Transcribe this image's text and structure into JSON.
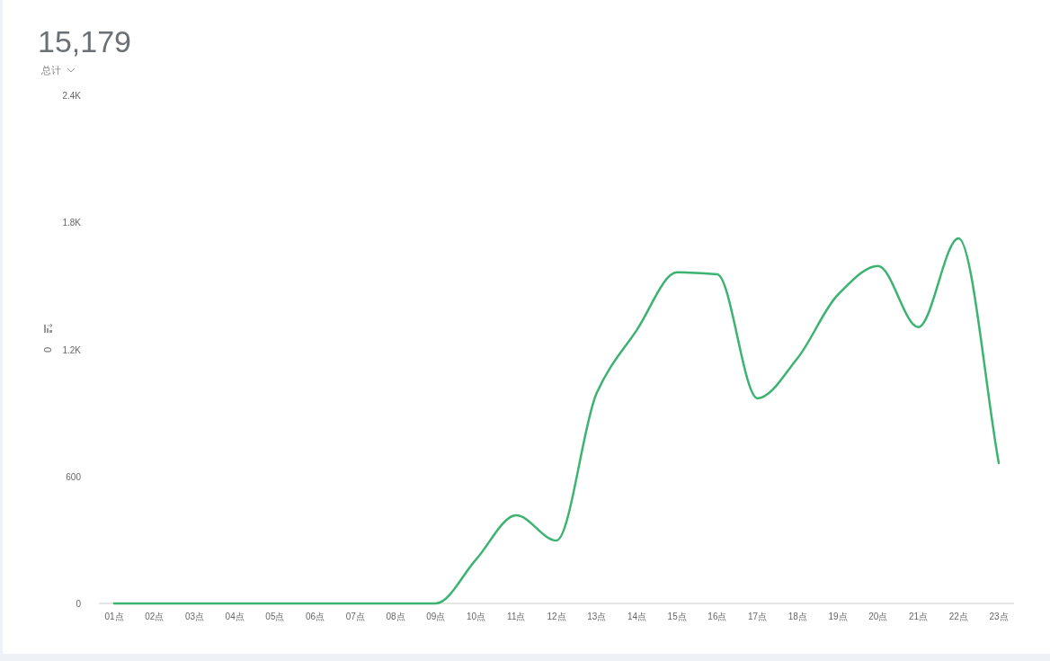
{
  "chart_data": {
    "type": "line",
    "title": "15,179",
    "subtitle": "总计",
    "ylabel": "0",
    "categories": [
      "01点",
      "02点",
      "03点",
      "04点",
      "05点",
      "06点",
      "07点",
      "08点",
      "09点",
      "10点",
      "11点",
      "12点",
      "13点",
      "14点",
      "15点",
      "16点",
      "17点",
      "18点",
      "19点",
      "20点",
      "21点",
      "22点",
      "23点"
    ],
    "series": [
      {
        "color": "#3cb371",
        "values": [
          0,
          0,
          0,
          0,
          0,
          0,
          0,
          0,
          0,
          208,
          416,
          297,
          994,
          1292,
          1564,
          1555,
          969,
          1160,
          1458,
          1594,
          1305,
          1725,
          663
        ]
      }
    ],
    "ylim": [
      0,
      2400
    ],
    "yticks": [
      0,
      600,
      {
        "value": 1200,
        "label": "1.2K"
      },
      {
        "value": 1800,
        "label": "1.8K"
      },
      {
        "value": 2400,
        "label": "2.4K"
      }
    ],
    "grid": false,
    "marker": "none",
    "line_style": "solid"
  }
}
